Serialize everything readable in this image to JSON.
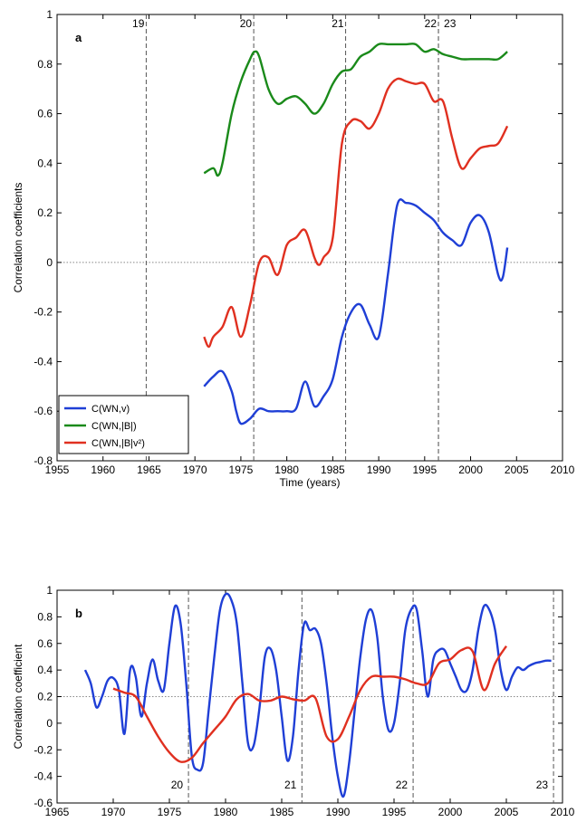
{
  "chart_data": [
    {
      "type": "line",
      "panel_label": "a",
      "xlabel": "Time (years)",
      "ylabel": "Correlation coefficients",
      "xlim": [
        1955,
        2010
      ],
      "ylim": [
        -0.8,
        1.0
      ],
      "xticks": [
        1955,
        1960,
        1965,
        1970,
        1975,
        1980,
        1985,
        1990,
        1995,
        2000,
        2005,
        2010
      ],
      "yticks": [
        -0.8,
        -0.6,
        -0.4,
        -0.2,
        0,
        0.2,
        0.4,
        0.6,
        0.8,
        1
      ],
      "ytick_labels": [
        "-0.8",
        "-0.6",
        "-0.4",
        "-0.2",
        "0",
        "0.2",
        "0.4",
        "0.6",
        "0.8",
        "1"
      ],
      "zero_line": true,
      "legend_position": "bottom-left",
      "cycle_markers": [
        {
          "label": "19",
          "x": 1964.7
        },
        {
          "label": "20",
          "x": 1976.4
        },
        {
          "label": "21",
          "x": 1986.4
        },
        {
          "label": "22",
          "x": 1996.5
        },
        {
          "label": "23",
          "x": 1996.5,
          "label_offset": 1
        }
      ],
      "series": [
        {
          "name": "C(WN,v)",
          "color": "#1f3fd6",
          "x": [
            1971,
            1972,
            1973,
            1974,
            1974.5,
            1975,
            1976,
            1977,
            1978,
            1979,
            1980,
            1981,
            1982,
            1983,
            1984,
            1985,
            1986,
            1987,
            1988,
            1989,
            1990,
            1991,
            1992,
            1993,
            1994,
            1995,
            1996,
            1997,
            1998,
            1999,
            2000,
            2001,
            2002,
            2003,
            2003.5,
            2004
          ],
          "y": [
            -0.5,
            -0.46,
            -0.44,
            -0.52,
            -0.6,
            -0.65,
            -0.63,
            -0.59,
            -0.6,
            -0.6,
            -0.6,
            -0.59,
            -0.48,
            -0.58,
            -0.54,
            -0.47,
            -0.3,
            -0.2,
            -0.17,
            -0.25,
            -0.3,
            -0.05,
            0.23,
            0.24,
            0.23,
            0.2,
            0.17,
            0.12,
            0.09,
            0.07,
            0.16,
            0.19,
            0.12,
            -0.05,
            -0.06,
            0.06
          ]
        },
        {
          "name": "C(WN,|B|)",
          "color": "#1a8a1a",
          "x": [
            1971,
            1972,
            1972.5,
            1973,
            1974,
            1975,
            1976,
            1976.5,
            1977,
            1978,
            1979,
            1980,
            1981,
            1982,
            1983,
            1984,
            1985,
            1986,
            1987,
            1988,
            1989,
            1990,
            1991,
            1992,
            1993,
            1994,
            1995,
            1996,
            1997,
            1998,
            1999,
            2000,
            2001,
            2002,
            2003,
            2004
          ],
          "y": [
            0.36,
            0.38,
            0.35,
            0.4,
            0.6,
            0.73,
            0.82,
            0.85,
            0.83,
            0.7,
            0.64,
            0.66,
            0.67,
            0.64,
            0.6,
            0.64,
            0.72,
            0.77,
            0.78,
            0.83,
            0.85,
            0.88,
            0.88,
            0.88,
            0.88,
            0.88,
            0.85,
            0.86,
            0.84,
            0.83,
            0.82,
            0.82,
            0.82,
            0.82,
            0.82,
            0.85
          ]
        },
        {
          "name": "C(WN,|B|v²)",
          "color": "#e03020",
          "x": [
            1971,
            1971.5,
            1972,
            1973,
            1974,
            1975,
            1976,
            1977,
            1978,
            1979,
            1980,
            1981,
            1982,
            1983,
            1983.5,
            1984,
            1985,
            1986,
            1987,
            1988,
            1989,
            1990,
            1991,
            1992,
            1993,
            1994,
            1995,
            1996,
            1997,
            1998,
            1999,
            2000,
            2001,
            2002,
            2003,
            2004
          ],
          "y": [
            -0.3,
            -0.34,
            -0.3,
            -0.26,
            -0.18,
            -0.3,
            -0.17,
            0.0,
            0.02,
            -0.05,
            0.07,
            0.1,
            0.13,
            0.02,
            -0.01,
            0.02,
            0.1,
            0.48,
            0.57,
            0.57,
            0.54,
            0.6,
            0.7,
            0.74,
            0.73,
            0.72,
            0.72,
            0.65,
            0.65,
            0.5,
            0.38,
            0.42,
            0.46,
            0.47,
            0.48,
            0.55
          ]
        }
      ]
    },
    {
      "type": "line",
      "panel_label": "b",
      "xlabel": "",
      "ylabel": "Correlation coefficient",
      "xlim": [
        1965,
        2010
      ],
      "ylim": [
        -0.6,
        1.0
      ],
      "xticks": [
        1965,
        1970,
        1975,
        1980,
        1985,
        1990,
        1995,
        2000,
        2005,
        2010
      ],
      "yticks": [
        -0.6,
        -0.4,
        -0.2,
        0,
        0.2,
        0.4,
        0.6,
        0.8,
        1
      ],
      "ytick_labels": [
        "-0.6",
        "-0.4",
        "-0.2",
        "0",
        "0.2",
        "0.4",
        "0.6",
        "0.8",
        "1"
      ],
      "ref_line": 0.2,
      "cycle_markers": [
        {
          "label": "20",
          "x": 1976.7
        },
        {
          "label": "21",
          "x": 1986.8
        },
        {
          "label": "22",
          "x": 1996.7
        },
        {
          "label": "23",
          "x": 2009.2
        }
      ],
      "series": [
        {
          "name": "",
          "color": "#1f3fd6",
          "x": [
            1967.5,
            1968,
            1968.5,
            1969,
            1969.5,
            1970,
            1970.5,
            1971,
            1971.5,
            1972,
            1972.5,
            1973,
            1973.5,
            1974,
            1974.5,
            1975,
            1975.5,
            1976,
            1976.5,
            1977,
            1977.5,
            1978,
            1978.5,
            1979,
            1979.5,
            1980,
            1980.5,
            1981,
            1981.5,
            1982,
            1982.5,
            1983,
            1983.5,
            1984,
            1984.5,
            1985,
            1985.5,
            1986,
            1986.5,
            1987,
            1987.5,
            1988,
            1988.5,
            1989,
            1989.5,
            1990,
            1990.5,
            1991,
            1991.5,
            1992,
            1992.5,
            1993,
            1993.5,
            1994,
            1994.5,
            1995,
            1995.5,
            1996,
            1996.5,
            1997,
            1997.5,
            1998,
            1998.5,
            1999,
            1999.5,
            2000,
            2000.5,
            2001,
            2001.5,
            2002,
            2002.5,
            2003,
            2003.5,
            2004,
            2004.5,
            2005,
            2005.5,
            2006,
            2006.5,
            2007,
            2007.5,
            2008,
            2008.5,
            2009
          ],
          "y": [
            0.4,
            0.3,
            0.12,
            0.2,
            0.32,
            0.34,
            0.25,
            -0.08,
            0.4,
            0.35,
            0.05,
            0.3,
            0.48,
            0.32,
            0.25,
            0.6,
            0.88,
            0.75,
            0.3,
            -0.25,
            -0.35,
            -0.3,
            0.1,
            0.5,
            0.85,
            0.97,
            0.93,
            0.75,
            0.3,
            -0.15,
            -0.17,
            0.1,
            0.5,
            0.56,
            0.4,
            0.05,
            -0.28,
            -0.1,
            0.4,
            0.75,
            0.7,
            0.71,
            0.6,
            0.3,
            -0.1,
            -0.4,
            -0.55,
            -0.3,
            0.1,
            0.5,
            0.78,
            0.85,
            0.65,
            0.2,
            -0.05,
            0.0,
            0.3,
            0.7,
            0.85,
            0.86,
            0.55,
            0.2,
            0.48,
            0.55,
            0.55,
            0.45,
            0.35,
            0.25,
            0.25,
            0.4,
            0.7,
            0.88,
            0.85,
            0.7,
            0.4,
            0.25,
            0.35,
            0.42,
            0.4,
            0.43,
            0.45,
            0.46,
            0.47,
            0.47
          ],
          "x_start": 1967.5
        },
        {
          "name": "",
          "color": "#e03020",
          "x": [
            1970,
            1971,
            1972,
            1973,
            1974,
            1975,
            1976,
            1977,
            1978,
            1979,
            1980,
            1981,
            1982,
            1983,
            1984,
            1985,
            1986,
            1987,
            1988,
            1989,
            1990,
            1991,
            1992,
            1993,
            1994,
            1995,
            1996,
            1997,
            1998,
            1999,
            2000,
            2001,
            2002,
            2003,
            2004,
            2005
          ],
          "y": [
            0.26,
            0.23,
            0.2,
            0.05,
            -0.1,
            -0.22,
            -0.29,
            -0.26,
            -0.15,
            -0.05,
            0.05,
            0.18,
            0.22,
            0.17,
            0.17,
            0.2,
            0.18,
            0.17,
            0.19,
            -0.1,
            -0.12,
            0.05,
            0.25,
            0.35,
            0.35,
            0.35,
            0.33,
            0.3,
            0.3,
            0.45,
            0.48,
            0.55,
            0.54,
            0.25,
            0.45,
            0.58
          ]
        }
      ]
    }
  ]
}
